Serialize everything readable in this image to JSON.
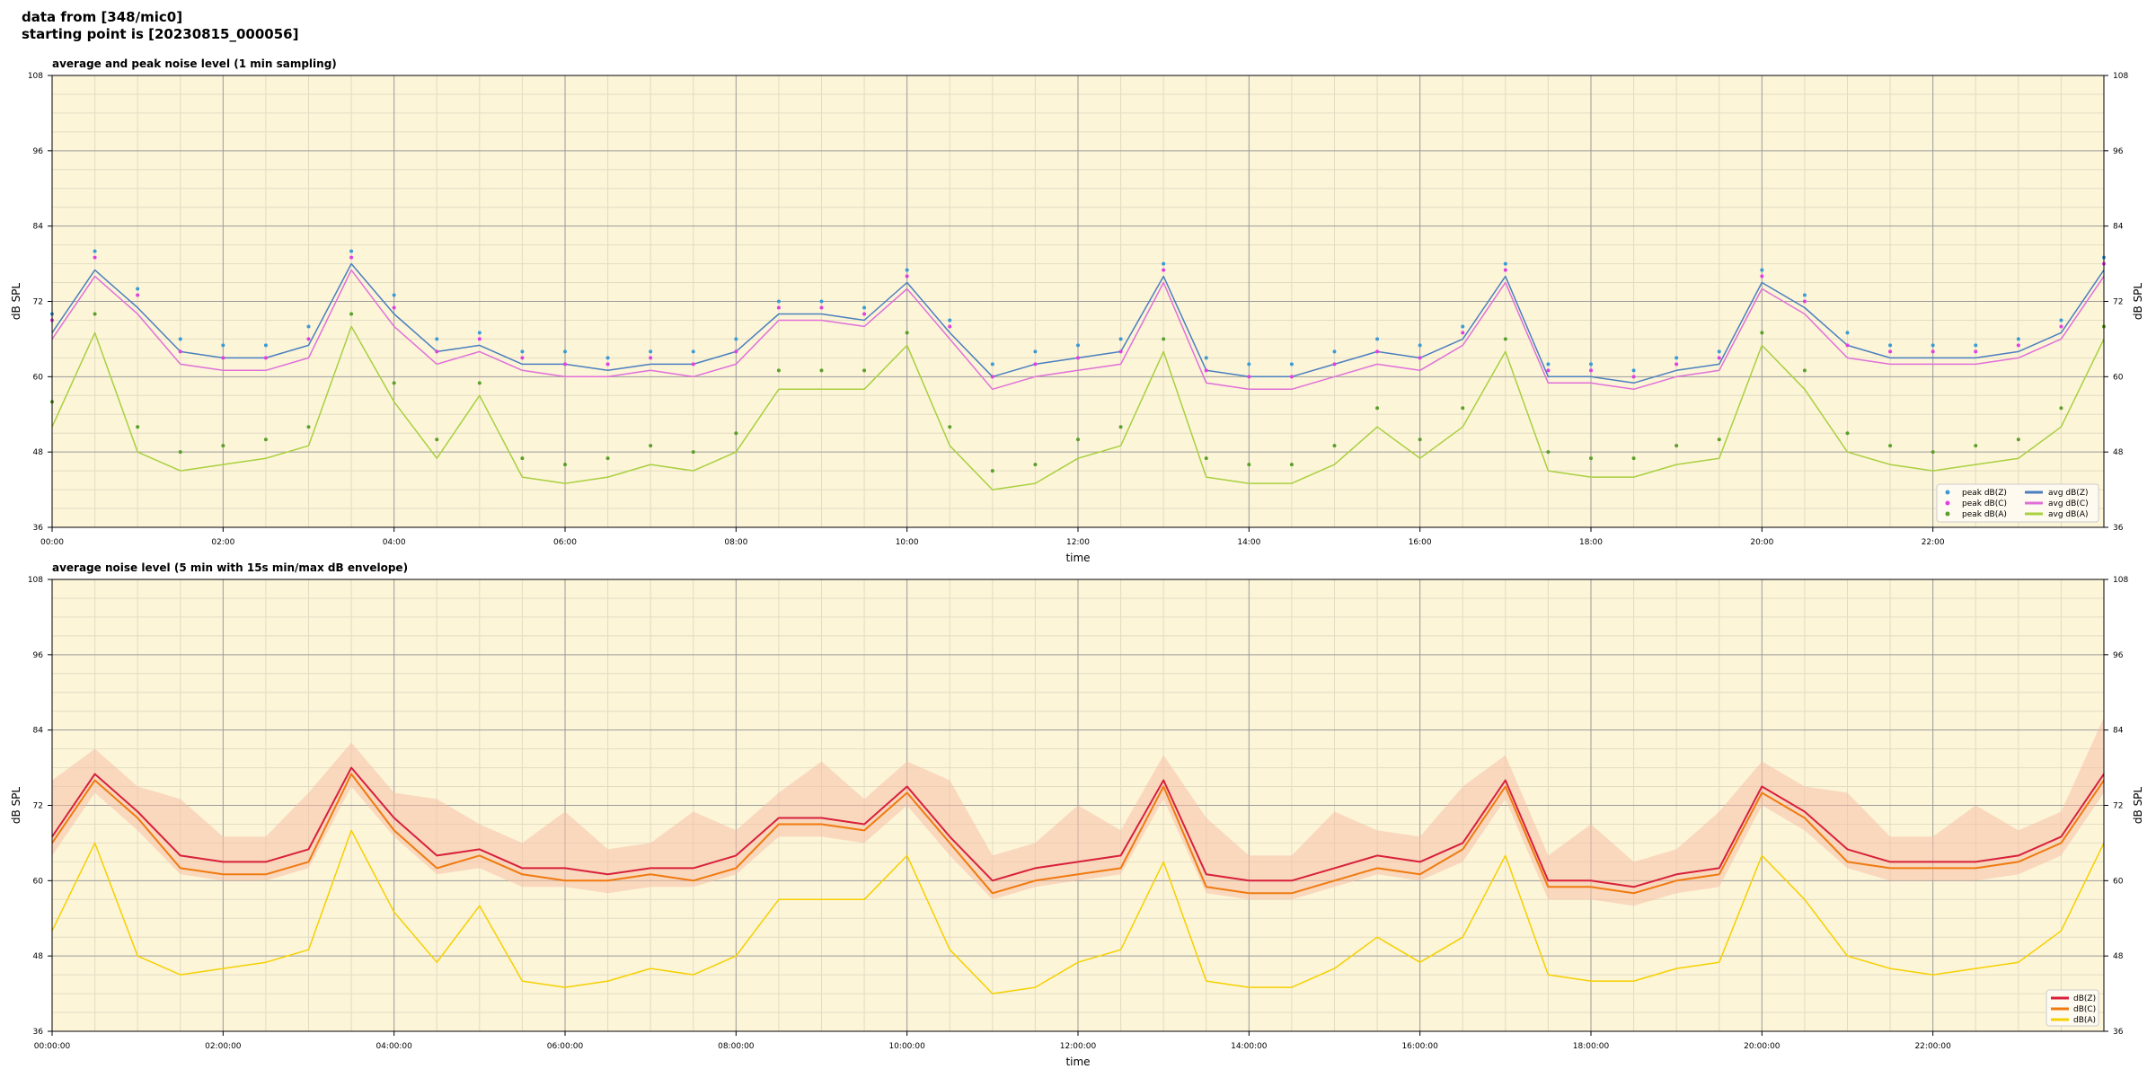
{
  "header": {
    "line1": "data from [348/mic0]",
    "line2": "starting point is [20230815_000056]"
  },
  "colors": {
    "plot_bg": "#fdf5d8",
    "grid_major": "#9a9a9a",
    "grid_minor": "#e2dcc4",
    "peak_z": "#3a9bd6",
    "peak_c": "#e040e0",
    "peak_a": "#5aa02c",
    "avg_z": "#4a7fbf",
    "avg_c": "#e070d8",
    "avg_a": "#a8d040",
    "env_z": "#d8203c",
    "env_c": "#f07a10",
    "env_a": "#f5d000",
    "envelope_band": "#f5c0a8"
  },
  "chart_data": [
    {
      "type": "line",
      "title": "average and peak noise level (1 min sampling)",
      "xlabel": "time",
      "ylabel": "dB SPL",
      "ylim": [
        36,
        108
      ],
      "yticks": [
        36,
        48,
        60,
        72,
        84,
        96,
        108
      ],
      "xlim_hours": [
        0,
        24
      ],
      "xtick_labels": [
        "00:00",
        "02:00",
        "04:00",
        "06:00",
        "08:00",
        "10:00",
        "12:00",
        "14:00",
        "16:00",
        "18:00",
        "20:00",
        "22:00"
      ],
      "grid": true,
      "legend_position": "lower-right",
      "x_hours": [
        0,
        0.5,
        1,
        1.5,
        2,
        2.5,
        3,
        3.5,
        4,
        4.5,
        5,
        5.5,
        6,
        6.5,
        7,
        7.5,
        8,
        8.5,
        9,
        9.5,
        10,
        10.5,
        11,
        11.5,
        12,
        12.5,
        13,
        13.5,
        14,
        14.5,
        15,
        15.5,
        16,
        16.5,
        17,
        17.5,
        18,
        18.5,
        19,
        19.5,
        20,
        20.5,
        21,
        21.5,
        22,
        22.5,
        23,
        23.5,
        24
      ],
      "series": [
        {
          "name": "avg dB(Z)",
          "style": "line",
          "values": [
            67,
            77,
            71,
            64,
            63,
            63,
            65,
            78,
            70,
            64,
            65,
            62,
            62,
            61,
            62,
            62,
            64,
            70,
            70,
            69,
            75,
            67,
            60,
            62,
            63,
            64,
            76,
            61,
            60,
            60,
            62,
            64,
            63,
            66,
            76,
            60,
            60,
            59,
            61,
            62,
            75,
            71,
            65,
            63,
            63,
            63,
            64,
            67,
            77
          ]
        },
        {
          "name": "avg dB(C)",
          "style": "line",
          "values": [
            66,
            76,
            70,
            62,
            61,
            61,
            63,
            77,
            68,
            62,
            64,
            61,
            60,
            60,
            61,
            60,
            62,
            69,
            69,
            68,
            74,
            66,
            58,
            60,
            61,
            62,
            75,
            59,
            58,
            58,
            60,
            62,
            61,
            65,
            75,
            59,
            59,
            58,
            60,
            61,
            74,
            70,
            63,
            62,
            62,
            62,
            63,
            66,
            76
          ]
        },
        {
          "name": "avg dB(A)",
          "style": "line",
          "values": [
            52,
            67,
            48,
            45,
            46,
            47,
            49,
            68,
            56,
            47,
            57,
            44,
            43,
            44,
            46,
            45,
            48,
            58,
            58,
            58,
            65,
            49,
            42,
            43,
            47,
            49,
            64,
            44,
            43,
            43,
            46,
            52,
            47,
            52,
            64,
            45,
            44,
            44,
            46,
            47,
            65,
            58,
            48,
            46,
            45,
            46,
            47,
            52,
            66
          ]
        },
        {
          "name": "peak dB(Z)",
          "style": "dots",
          "values": [
            70,
            80,
            74,
            66,
            65,
            65,
            68,
            80,
            73,
            66,
            67,
            64,
            64,
            63,
            64,
            64,
            66,
            72,
            72,
            71,
            77,
            69,
            62,
            64,
            65,
            66,
            78,
            63,
            62,
            62,
            64,
            66,
            65,
            68,
            78,
            62,
            62,
            61,
            63,
            64,
            77,
            73,
            67,
            65,
            65,
            65,
            66,
            69,
            79
          ]
        },
        {
          "name": "peak dB(C)",
          "style": "dots",
          "values": [
            69,
            79,
            73,
            64,
            63,
            63,
            66,
            79,
            71,
            64,
            66,
            63,
            62,
            62,
            63,
            62,
            64,
            71,
            71,
            70,
            76,
            68,
            60,
            62,
            63,
            64,
            77,
            61,
            60,
            60,
            62,
            64,
            63,
            67,
            77,
            61,
            61,
            60,
            62,
            63,
            76,
            72,
            65,
            64,
            64,
            64,
            65,
            68,
            78
          ]
        },
        {
          "name": "peak dB(A)",
          "style": "dots",
          "values": [
            56,
            70,
            52,
            48,
            49,
            50,
            52,
            70,
            59,
            50,
            59,
            47,
            46,
            47,
            49,
            48,
            51,
            61,
            61,
            61,
            67,
            52,
            45,
            46,
            50,
            52,
            66,
            47,
            46,
            46,
            49,
            55,
            50,
            55,
            66,
            48,
            47,
            47,
            49,
            50,
            67,
            61,
            51,
            49,
            48,
            49,
            50,
            55,
            68
          ]
        }
      ]
    },
    {
      "type": "line",
      "title": "average noise level (5 min with 15s min/max dB envelope)",
      "xlabel": "time",
      "ylabel": "dB SPL",
      "ylim": [
        36,
        108
      ],
      "yticks": [
        36,
        48,
        60,
        72,
        84,
        96,
        108
      ],
      "xlim_hours": [
        0,
        24
      ],
      "xtick_labels": [
        "00:00:00",
        "02:00:00",
        "04:00:00",
        "06:00:00",
        "08:00:00",
        "10:00:00",
        "12:00:00",
        "14:00:00",
        "16:00:00",
        "18:00:00",
        "20:00:00",
        "22:00:00"
      ],
      "grid": true,
      "legend_position": "lower-right",
      "x_hours": [
        0,
        0.5,
        1,
        1.5,
        2,
        2.5,
        3,
        3.5,
        4,
        4.5,
        5,
        5.5,
        6,
        6.5,
        7,
        7.5,
        8,
        8.5,
        9,
        9.5,
        10,
        10.5,
        11,
        11.5,
        12,
        12.5,
        13,
        13.5,
        14,
        14.5,
        15,
        15.5,
        16,
        16.5,
        17,
        17.5,
        18,
        18.5,
        19,
        19.5,
        20,
        20.5,
        21,
        21.5,
        22,
        22.5,
        23,
        23.5,
        24
      ],
      "series": [
        {
          "name": "dB(Z)",
          "style": "line",
          "values": [
            67,
            77,
            71,
            64,
            63,
            63,
            65,
            78,
            70,
            64,
            65,
            62,
            62,
            61,
            62,
            62,
            64,
            70,
            70,
            69,
            75,
            67,
            60,
            62,
            63,
            64,
            76,
            61,
            60,
            60,
            62,
            64,
            63,
            66,
            76,
            60,
            60,
            59,
            61,
            62,
            75,
            71,
            65,
            63,
            63,
            63,
            64,
            67,
            77
          ]
        },
        {
          "name": "dB(C)",
          "style": "line",
          "values": [
            66,
            76,
            70,
            62,
            61,
            61,
            63,
            77,
            68,
            62,
            64,
            61,
            60,
            60,
            61,
            60,
            62,
            69,
            69,
            68,
            74,
            66,
            58,
            60,
            61,
            62,
            75,
            59,
            58,
            58,
            60,
            62,
            61,
            65,
            75,
            59,
            59,
            58,
            60,
            61,
            74,
            70,
            63,
            62,
            62,
            62,
            63,
            66,
            76
          ]
        },
        {
          "name": "dB(A)",
          "style": "line",
          "values": [
            52,
            66,
            48,
            45,
            46,
            47,
            49,
            68,
            55,
            47,
            56,
            44,
            43,
            44,
            46,
            45,
            48,
            57,
            57,
            57,
            64,
            49,
            42,
            43,
            47,
            49,
            63,
            44,
            43,
            43,
            46,
            51,
            47,
            51,
            64,
            45,
            44,
            44,
            46,
            47,
            64,
            57,
            48,
            46,
            45,
            46,
            47,
            52,
            66
          ]
        }
      ]
    }
  ]
}
